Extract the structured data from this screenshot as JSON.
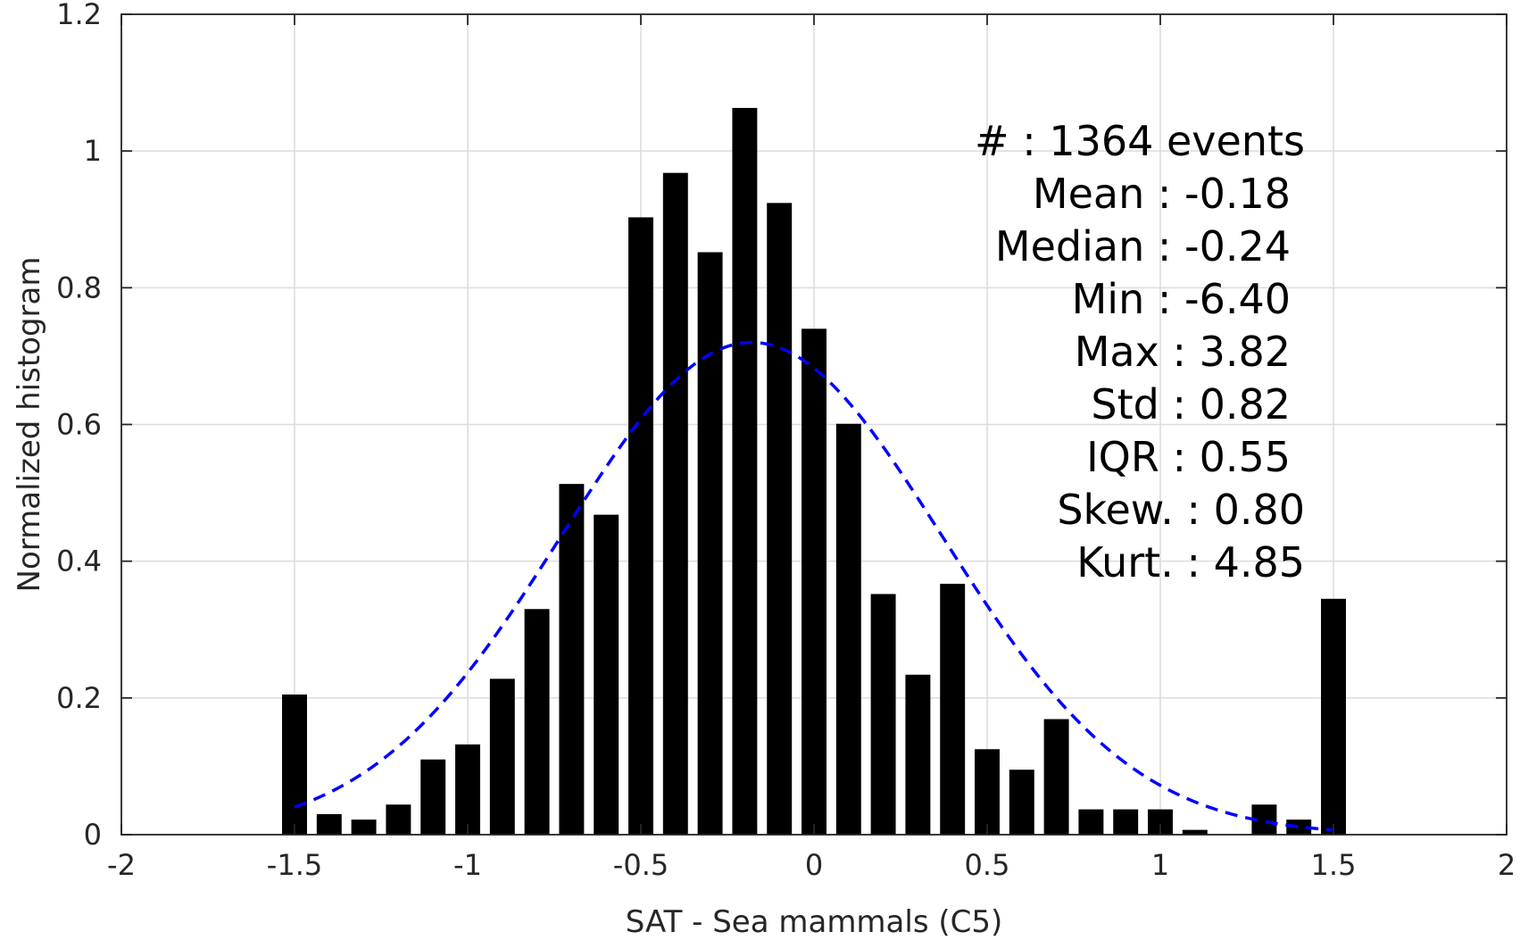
{
  "chart_data": {
    "type": "bar",
    "xlabel": "SAT - Sea mammals (C5)",
    "ylabel": "Normalized histogram",
    "xlim": [
      -2,
      2
    ],
    "ylim": [
      0,
      1.2
    ],
    "xticks": [
      -2,
      -1.5,
      -1,
      -0.5,
      0,
      0.5,
      1,
      1.5,
      2
    ],
    "xtick_labels": [
      "-2",
      "-1.5",
      "-1",
      "-0.5",
      "0",
      "0.5",
      "1",
      "1.5",
      "2"
    ],
    "yticks": [
      0,
      0.2,
      0.4,
      0.6,
      0.8,
      1,
      1.2
    ],
    "ytick_labels": [
      "0",
      "0.2",
      "0.4",
      "0.6",
      "0.8",
      "1",
      "1.2"
    ],
    "grid": true,
    "bar_color": "#000000",
    "x": [
      -1.5,
      -1.4,
      -1.3,
      -1.2,
      -1.1,
      -1.0,
      -0.9,
      -0.8,
      -0.7,
      -0.6,
      -0.5,
      -0.4,
      -0.3,
      -0.2,
      -0.1,
      0.0,
      0.1,
      0.2,
      0.3,
      0.4,
      0.5,
      0.6,
      0.7,
      0.8,
      0.9,
      1.0,
      1.1,
      1.2,
      1.3,
      1.4,
      1.5
    ],
    "values": [
      0.205,
      0.03,
      0.022,
      0.044,
      0.11,
      0.132,
      0.228,
      0.33,
      0.513,
      0.468,
      0.903,
      0.968,
      0.852,
      1.063,
      0.924,
      0.74,
      0.601,
      0.352,
      0.234,
      0.367,
      0.125,
      0.095,
      0.169,
      0.037,
      0.037,
      0.037,
      0.007,
      0,
      0.044,
      0.022,
      0.345
    ],
    "fit_curve": {
      "type": "normal",
      "mean": -0.18,
      "std": 0.55,
      "x_range": [
        -1.5,
        1.5
      ],
      "color": "#0000ff",
      "style": "dashed"
    },
    "stats": [
      "#  : 1364 events",
      "Mean : -0.18",
      "Median : -0.24",
      "Min : -6.40",
      "Max : 3.82",
      "Std : 0.82",
      "IQR : 0.55",
      "Skew. : 0.80",
      "Kurt. : 4.85"
    ]
  }
}
